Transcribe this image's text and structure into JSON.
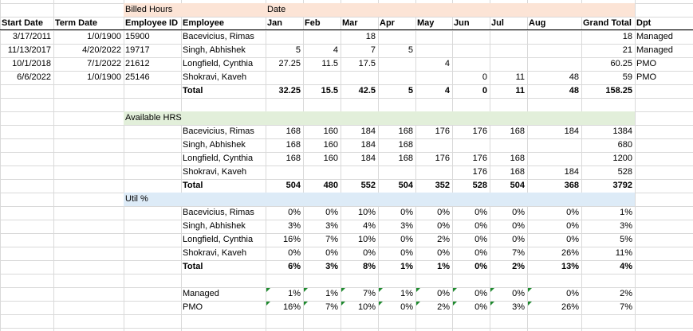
{
  "colors": {
    "billed_band": "#fce4d6",
    "available_band": "#e2efda",
    "util_band": "#ddebf7",
    "error_marker": "#1e8a2e"
  },
  "labels": {
    "billed_hours": "Billed Hours",
    "date": "Date",
    "available_hrs": "Available HRS",
    "util_pct": "Util %"
  },
  "header": {
    "start_date": "Start Date",
    "term_date": "Term Date",
    "employee_id": "Employee ID",
    "employee": "Employee",
    "months": [
      "Jan",
      "Feb",
      "Mar",
      "Apr",
      "May",
      "Jun",
      "Jul",
      "Aug"
    ],
    "grand_total": "Grand Total",
    "dpt": "Dpt"
  },
  "billed_rows": [
    {
      "start": "3/17/2011",
      "term": "1/0/1900",
      "id": "15900",
      "name": "Bacevicius, Rimas",
      "months": [
        "",
        "",
        "18",
        "",
        "",
        "",
        "",
        ""
      ],
      "total": "18",
      "dpt": "Managed"
    },
    {
      "start": "11/13/2017",
      "term": "4/20/2022",
      "id": "19717",
      "name": "Singh, Abhishek",
      "months": [
        "5",
        "4",
        "7",
        "5",
        "",
        "",
        "",
        ""
      ],
      "total": "21",
      "dpt": "Managed"
    },
    {
      "start": "10/1/2018",
      "term": "7/1/2022",
      "id": "21612",
      "name": "Longfield, Cynthia",
      "months": [
        "27.25",
        "11.5",
        "17.5",
        "",
        "4",
        "",
        "",
        ""
      ],
      "total": "60.25",
      "dpt": "PMO"
    },
    {
      "start": "6/6/2022",
      "term": "1/0/1900",
      "id": "25146",
      "name": "Shokravi, Kaveh",
      "months": [
        "",
        "",
        "",
        "",
        "",
        "0",
        "11",
        "48"
      ],
      "total": "59",
      "dpt": "PMO"
    }
  ],
  "billed_total": {
    "label": "Total",
    "months": [
      "32.25",
      "15.5",
      "42.5",
      "5",
      "4",
      "0",
      "11",
      "48"
    ],
    "total": "158.25"
  },
  "available_rows": [
    {
      "name": "Bacevicius, Rimas",
      "months": [
        "168",
        "160",
        "184",
        "168",
        "176",
        "176",
        "168",
        "184"
      ],
      "total": "1384"
    },
    {
      "name": "Singh, Abhishek",
      "months": [
        "168",
        "160",
        "184",
        "168",
        "",
        "",
        "",
        ""
      ],
      "total": "680"
    },
    {
      "name": "Longfield, Cynthia",
      "months": [
        "168",
        "160",
        "184",
        "168",
        "176",
        "176",
        "168",
        ""
      ],
      "total": "1200"
    },
    {
      "name": "Shokravi, Kaveh",
      "months": [
        "",
        "",
        "",
        "",
        "",
        "176",
        "168",
        "184"
      ],
      "total": "528"
    }
  ],
  "available_total": {
    "label": "Total",
    "months": [
      "504",
      "480",
      "552",
      "504",
      "352",
      "528",
      "504",
      "368"
    ],
    "total": "3792"
  },
  "util_rows": [
    {
      "name": "Bacevicius, Rimas",
      "months": [
        "0%",
        "0%",
        "10%",
        "0%",
        "0%",
        "0%",
        "0%",
        "0%"
      ],
      "total": "1%"
    },
    {
      "name": "Singh, Abhishek",
      "months": [
        "3%",
        "3%",
        "4%",
        "3%",
        "0%",
        "0%",
        "0%",
        "0%"
      ],
      "total": "3%"
    },
    {
      "name": "Longfield, Cynthia",
      "months": [
        "16%",
        "7%",
        "10%",
        "0%",
        "2%",
        "0%",
        "0%",
        "0%"
      ],
      "total": "5%"
    },
    {
      "name": "Shokravi, Kaveh",
      "months": [
        "0%",
        "0%",
        "0%",
        "0%",
        "0%",
        "0%",
        "7%",
        "26%"
      ],
      "total": "11%"
    }
  ],
  "util_total": {
    "label": "Total",
    "months": [
      "6%",
      "3%",
      "8%",
      "1%",
      "1%",
      "0%",
      "2%",
      "13%"
    ],
    "total": "4%"
  },
  "dept_rows": [
    {
      "name": "Managed",
      "months": [
        "1%",
        "1%",
        "7%",
        "1%",
        "0%",
        "0%",
        "0%",
        "0%"
      ],
      "total": "2%"
    },
    {
      "name": "PMO",
      "months": [
        "16%",
        "7%",
        "10%",
        "0%",
        "2%",
        "0%",
        "3%",
        "26%"
      ],
      "total": "7%"
    }
  ]
}
